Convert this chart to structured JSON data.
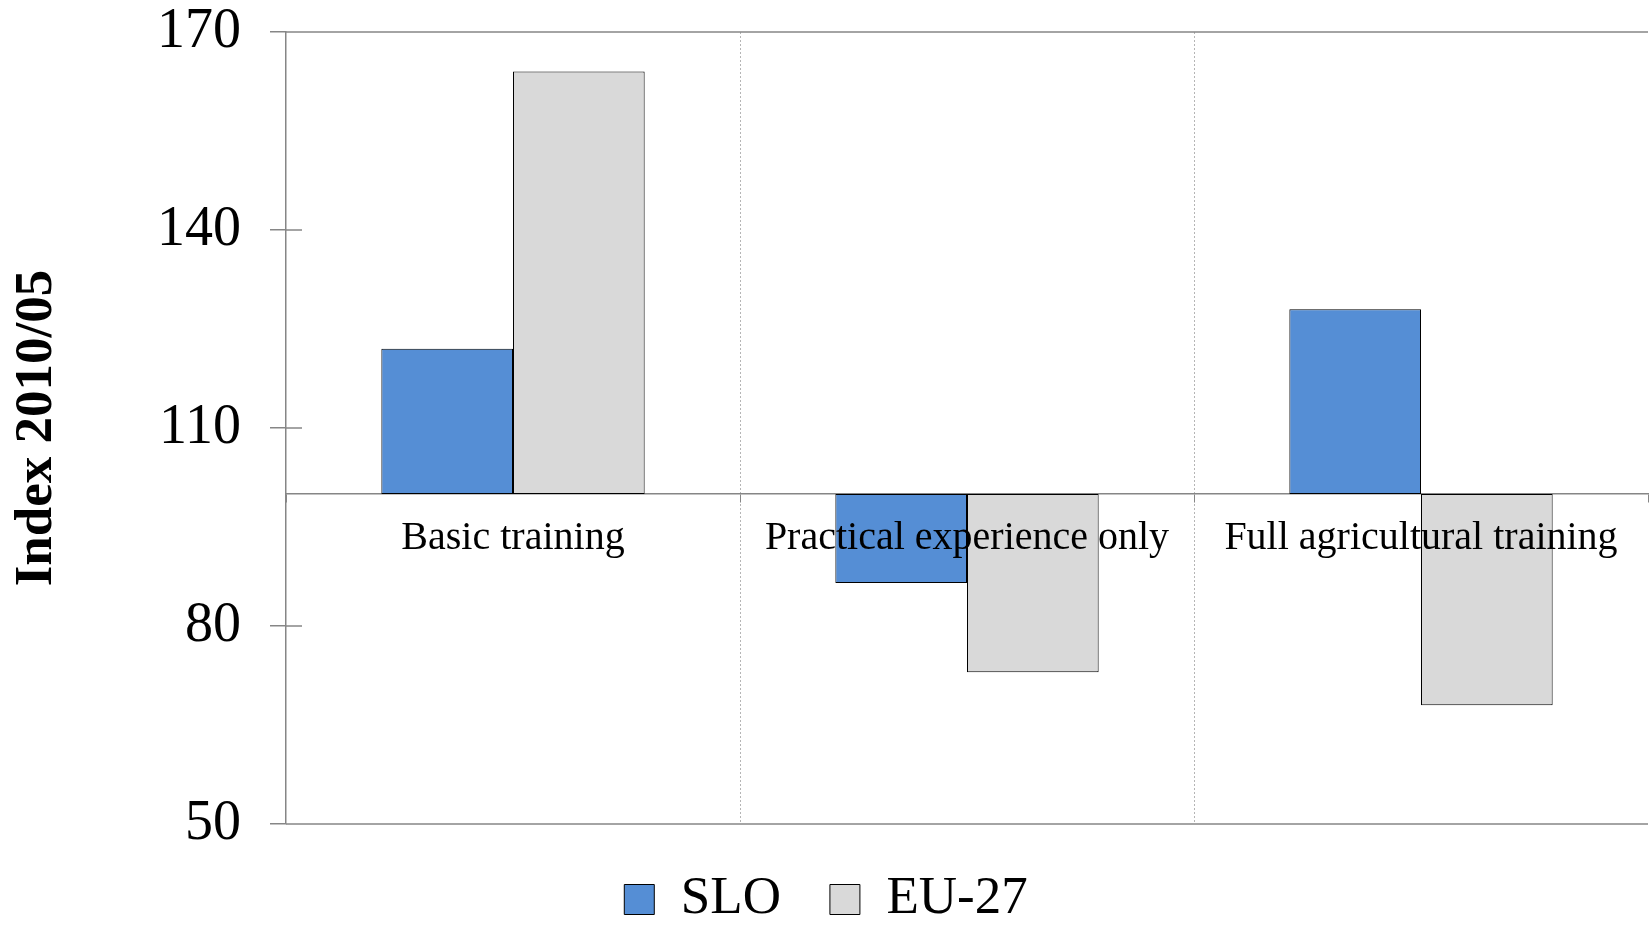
{
  "chart_data": {
    "type": "bar",
    "categories": [
      "Basic training",
      "Practical experience only",
      "Full agricultural training"
    ],
    "series": [
      {
        "name": "SLO",
        "color": "#558ed5",
        "base": [
          100,
          100,
          100
        ],
        "values": [
          22,
          -13.5,
          28
        ]
      },
      {
        "name": "EU-27",
        "color": "#d9d9d9",
        "base": [
          100,
          100,
          100
        ],
        "values": [
          64,
          -27,
          -32
        ]
      }
    ],
    "ylabel": "Index 2010/05",
    "ylim": [
      50,
      170
    ],
    "yticks": [
      50,
      80,
      110,
      140,
      170
    ],
    "grid": "x",
    "legend": "bottom"
  }
}
